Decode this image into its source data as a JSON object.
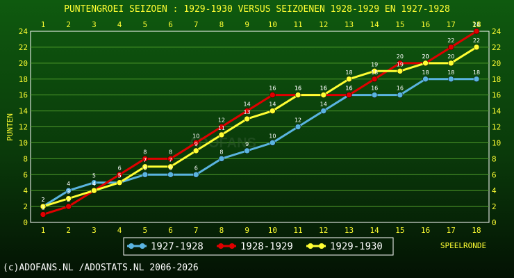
{
  "chart_data": {
    "type": "line",
    "title": "PUNTENGROEI  SEIZOEN : 1929-1930 VERSUS SEIZOENEN 1928-1929 EN 1927-1928",
    "xlabel": "SPEELRONDE",
    "ylabel": "PUNTEN",
    "x": [
      1,
      2,
      3,
      4,
      5,
      6,
      7,
      8,
      9,
      10,
      11,
      12,
      13,
      14,
      15,
      16,
      17,
      18
    ],
    "xlim": [
      1,
      18
    ],
    "ylim": [
      0,
      24
    ],
    "yticks": [
      0,
      2,
      4,
      6,
      8,
      10,
      12,
      14,
      16,
      18,
      20,
      22,
      24
    ],
    "grid": true,
    "legend_position": "bottom",
    "series": [
      {
        "name": "1927-1928",
        "color": "#5ab4e0",
        "values": [
          2,
          4,
          5,
          5,
          6,
          6,
          6,
          8,
          9,
          10,
          12,
          14,
          16,
          16,
          16,
          18,
          18,
          18
        ]
      },
      {
        "name": "1928-1929",
        "color": "#e00000",
        "values": [
          1,
          2,
          4,
          6,
          8,
          8,
          10,
          12,
          14,
          16,
          16,
          16,
          16,
          18,
          20,
          20,
          22,
          24
        ]
      },
      {
        "name": "1929-1930",
        "color": "#ffff33",
        "values": [
          2,
          3,
          4,
          5,
          7,
          7,
          9,
          11,
          13,
          14,
          16,
          16,
          18,
          19,
          19,
          20,
          20,
          22
        ]
      }
    ]
  },
  "footer": "(c)ADOFANS.NL /ADOSTATS.NL 2006-2026",
  "watermark": "ADOFANS",
  "colors": {
    "gridline": "#4f9a2a",
    "text": "#ffff33",
    "frame": "#ffffff"
  }
}
